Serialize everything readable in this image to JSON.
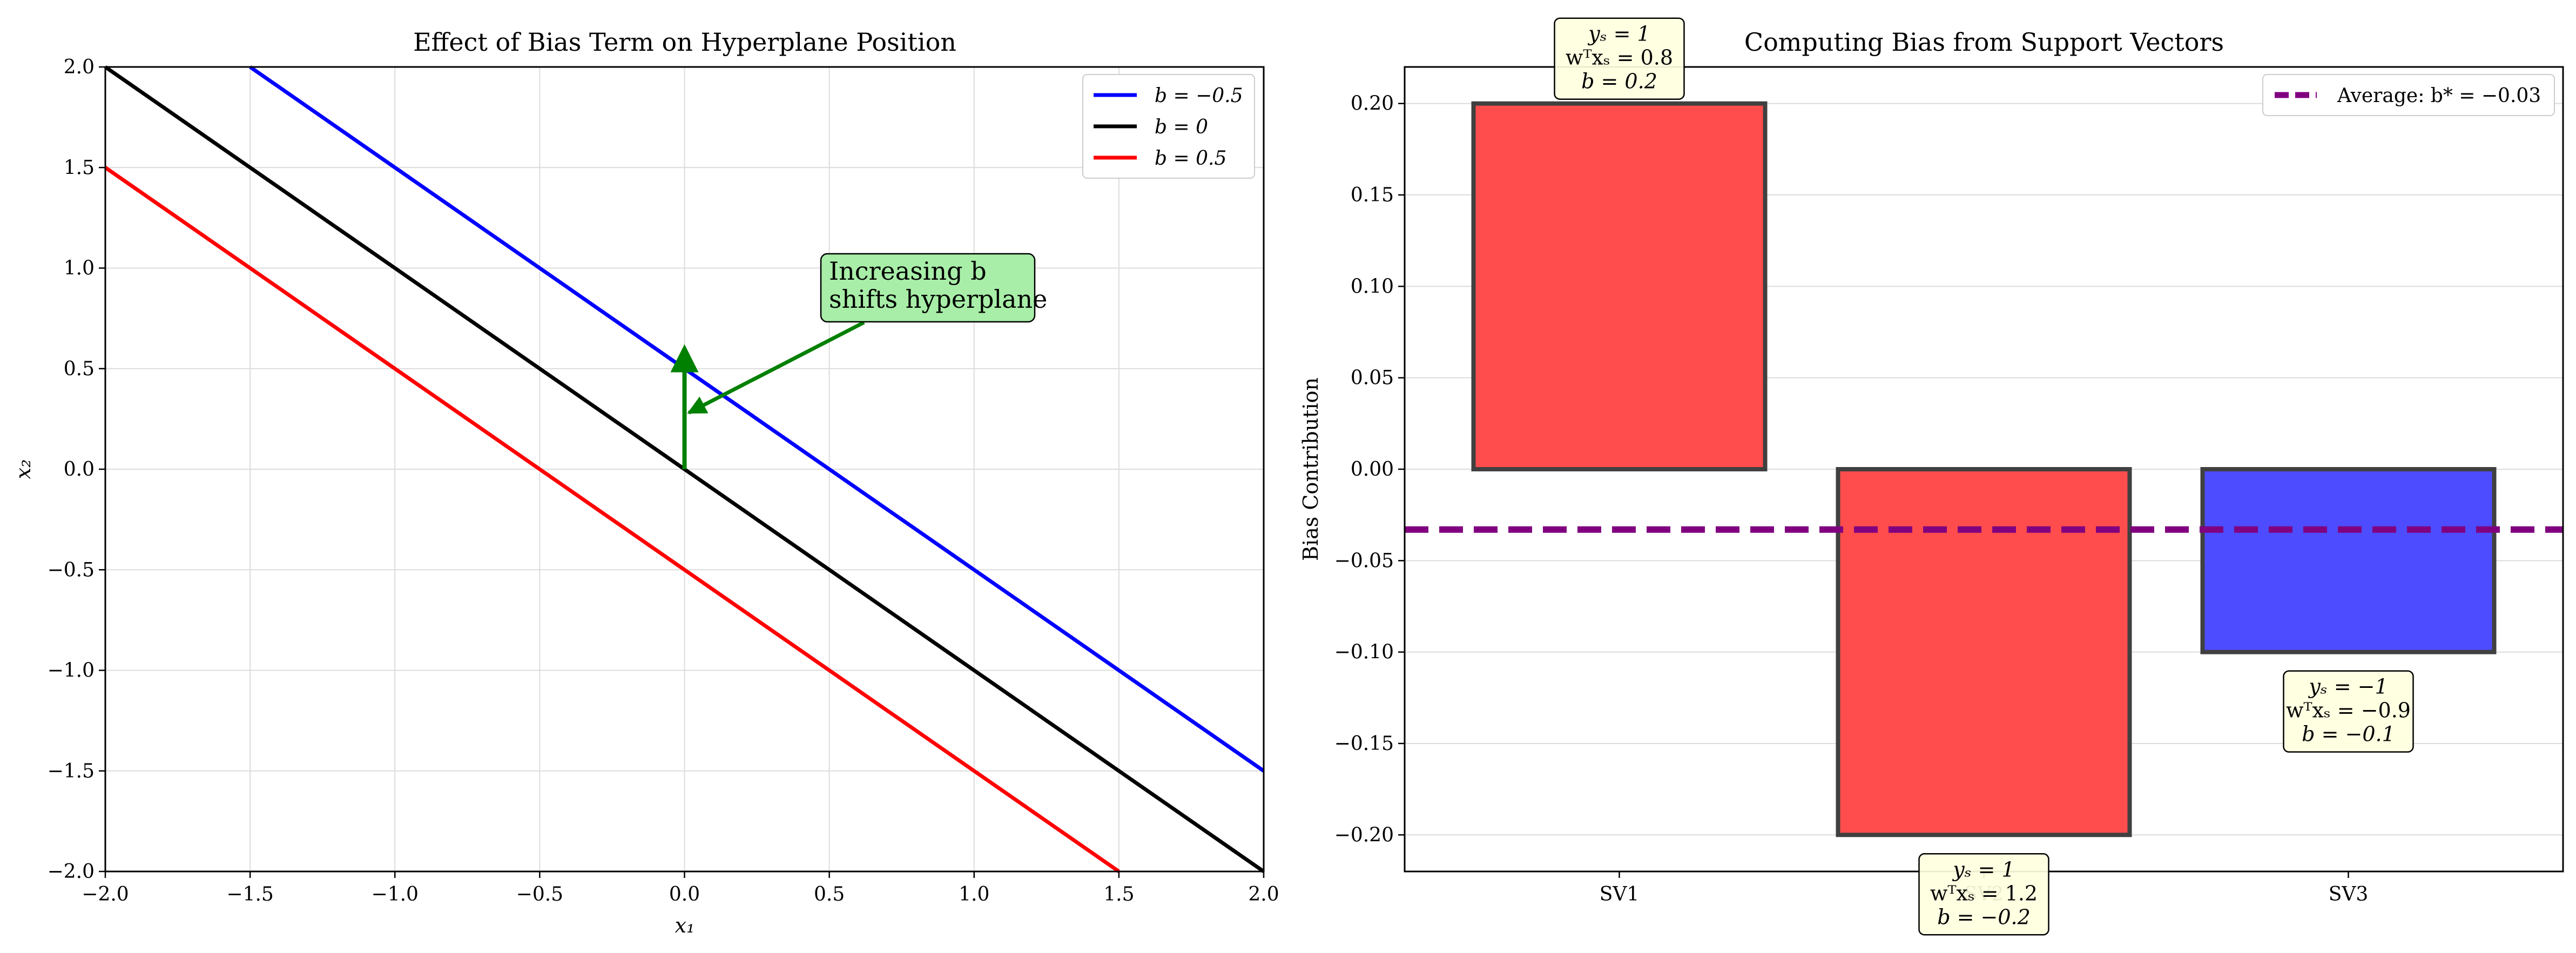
{
  "chart_data": [
    {
      "type": "line",
      "title": "Effect of Bias Term on Hyperplane Position",
      "xlabel": "x₁",
      "ylabel": "x₂",
      "xlim": [
        -2.0,
        2.0
      ],
      "ylim": [
        -2.0,
        2.0
      ],
      "xticks": [
        -2.0,
        -1.5,
        -1.0,
        -0.5,
        0.0,
        0.5,
        1.0,
        1.5,
        2.0
      ],
      "yticks": [
        -2.0,
        -1.5,
        -1.0,
        -0.5,
        0.0,
        0.5,
        1.0,
        1.5,
        2.0
      ],
      "xtick_labels": [
        "−2.0",
        "−1.5",
        "−1.0",
        "−0.5",
        "0.0",
        "0.5",
        "1.0",
        "1.5",
        "2.0"
      ],
      "ytick_labels": [
        "−2.0",
        "−1.5",
        "−1.0",
        "−0.5",
        "0.0",
        "0.5",
        "1.0",
        "1.5",
        "2.0"
      ],
      "grid": true,
      "legend_position": "top-right",
      "series": [
        {
          "name": "b = −0.5",
          "color": "#0000ff",
          "bias": -0.5,
          "x": [
            -1.5,
            2.0
          ],
          "y": [
            2.0,
            -1.5
          ]
        },
        {
          "name": "b = 0",
          "color": "#000000",
          "bias": 0,
          "x": [
            -2.0,
            2.0
          ],
          "y": [
            2.0,
            -2.0
          ]
        },
        {
          "name": "b = 0.5",
          "color": "#ff0000",
          "bias": 0.5,
          "x": [
            -2.0,
            1.5
          ],
          "y": [
            1.5,
            -2.0
          ]
        }
      ],
      "normal_arrow": {
        "color": "#008000",
        "from": [
          0,
          0
        ],
        "to": [
          0,
          0.6
        ]
      },
      "annotation": {
        "lines": [
          "Increasing b",
          "shifts hyperplane"
        ],
        "text_at": [
          0.5,
          0.85
        ],
        "arrow_to": [
          0.0,
          0.27
        ],
        "box_color": "#a8eea8"
      }
    },
    {
      "type": "bar",
      "title": "Computing Bias from Support Vectors",
      "xlabel": "",
      "ylabel": "Bias Contribution",
      "categories": [
        "SV1",
        "SV2",
        "SV3"
      ],
      "values": [
        0.2,
        -0.2,
        -0.1
      ],
      "colors": [
        "#ff4d4d",
        "#ff4d4d",
        "#4d4dff"
      ],
      "ylim": [
        -0.22,
        0.22
      ],
      "yticks": [
        -0.2,
        -0.15,
        -0.1,
        -0.05,
        0.0,
        0.05,
        0.1,
        0.15,
        0.2
      ],
      "ytick_labels": [
        "−0.20",
        "−0.15",
        "−0.10",
        "−0.05",
        "0.00",
        "0.05",
        "0.10",
        "0.15",
        "0.20"
      ],
      "grid": true,
      "legend_position": "top-right",
      "average": {
        "value": -0.033,
        "label": "Average: b* = −0.03",
        "color": "#800080"
      },
      "bar_labels": [
        [
          "yₛ = 1",
          "wᵀxₛ = 0.8",
          "b = 0.2"
        ],
        [
          "yₛ = 1",
          "wᵀxₛ = 1.2",
          "b = −0.2"
        ],
        [
          "yₛ = −1",
          "wᵀxₛ = −0.9",
          "b = −0.1"
        ]
      ],
      "label_box_color": "#ffffe0"
    }
  ]
}
